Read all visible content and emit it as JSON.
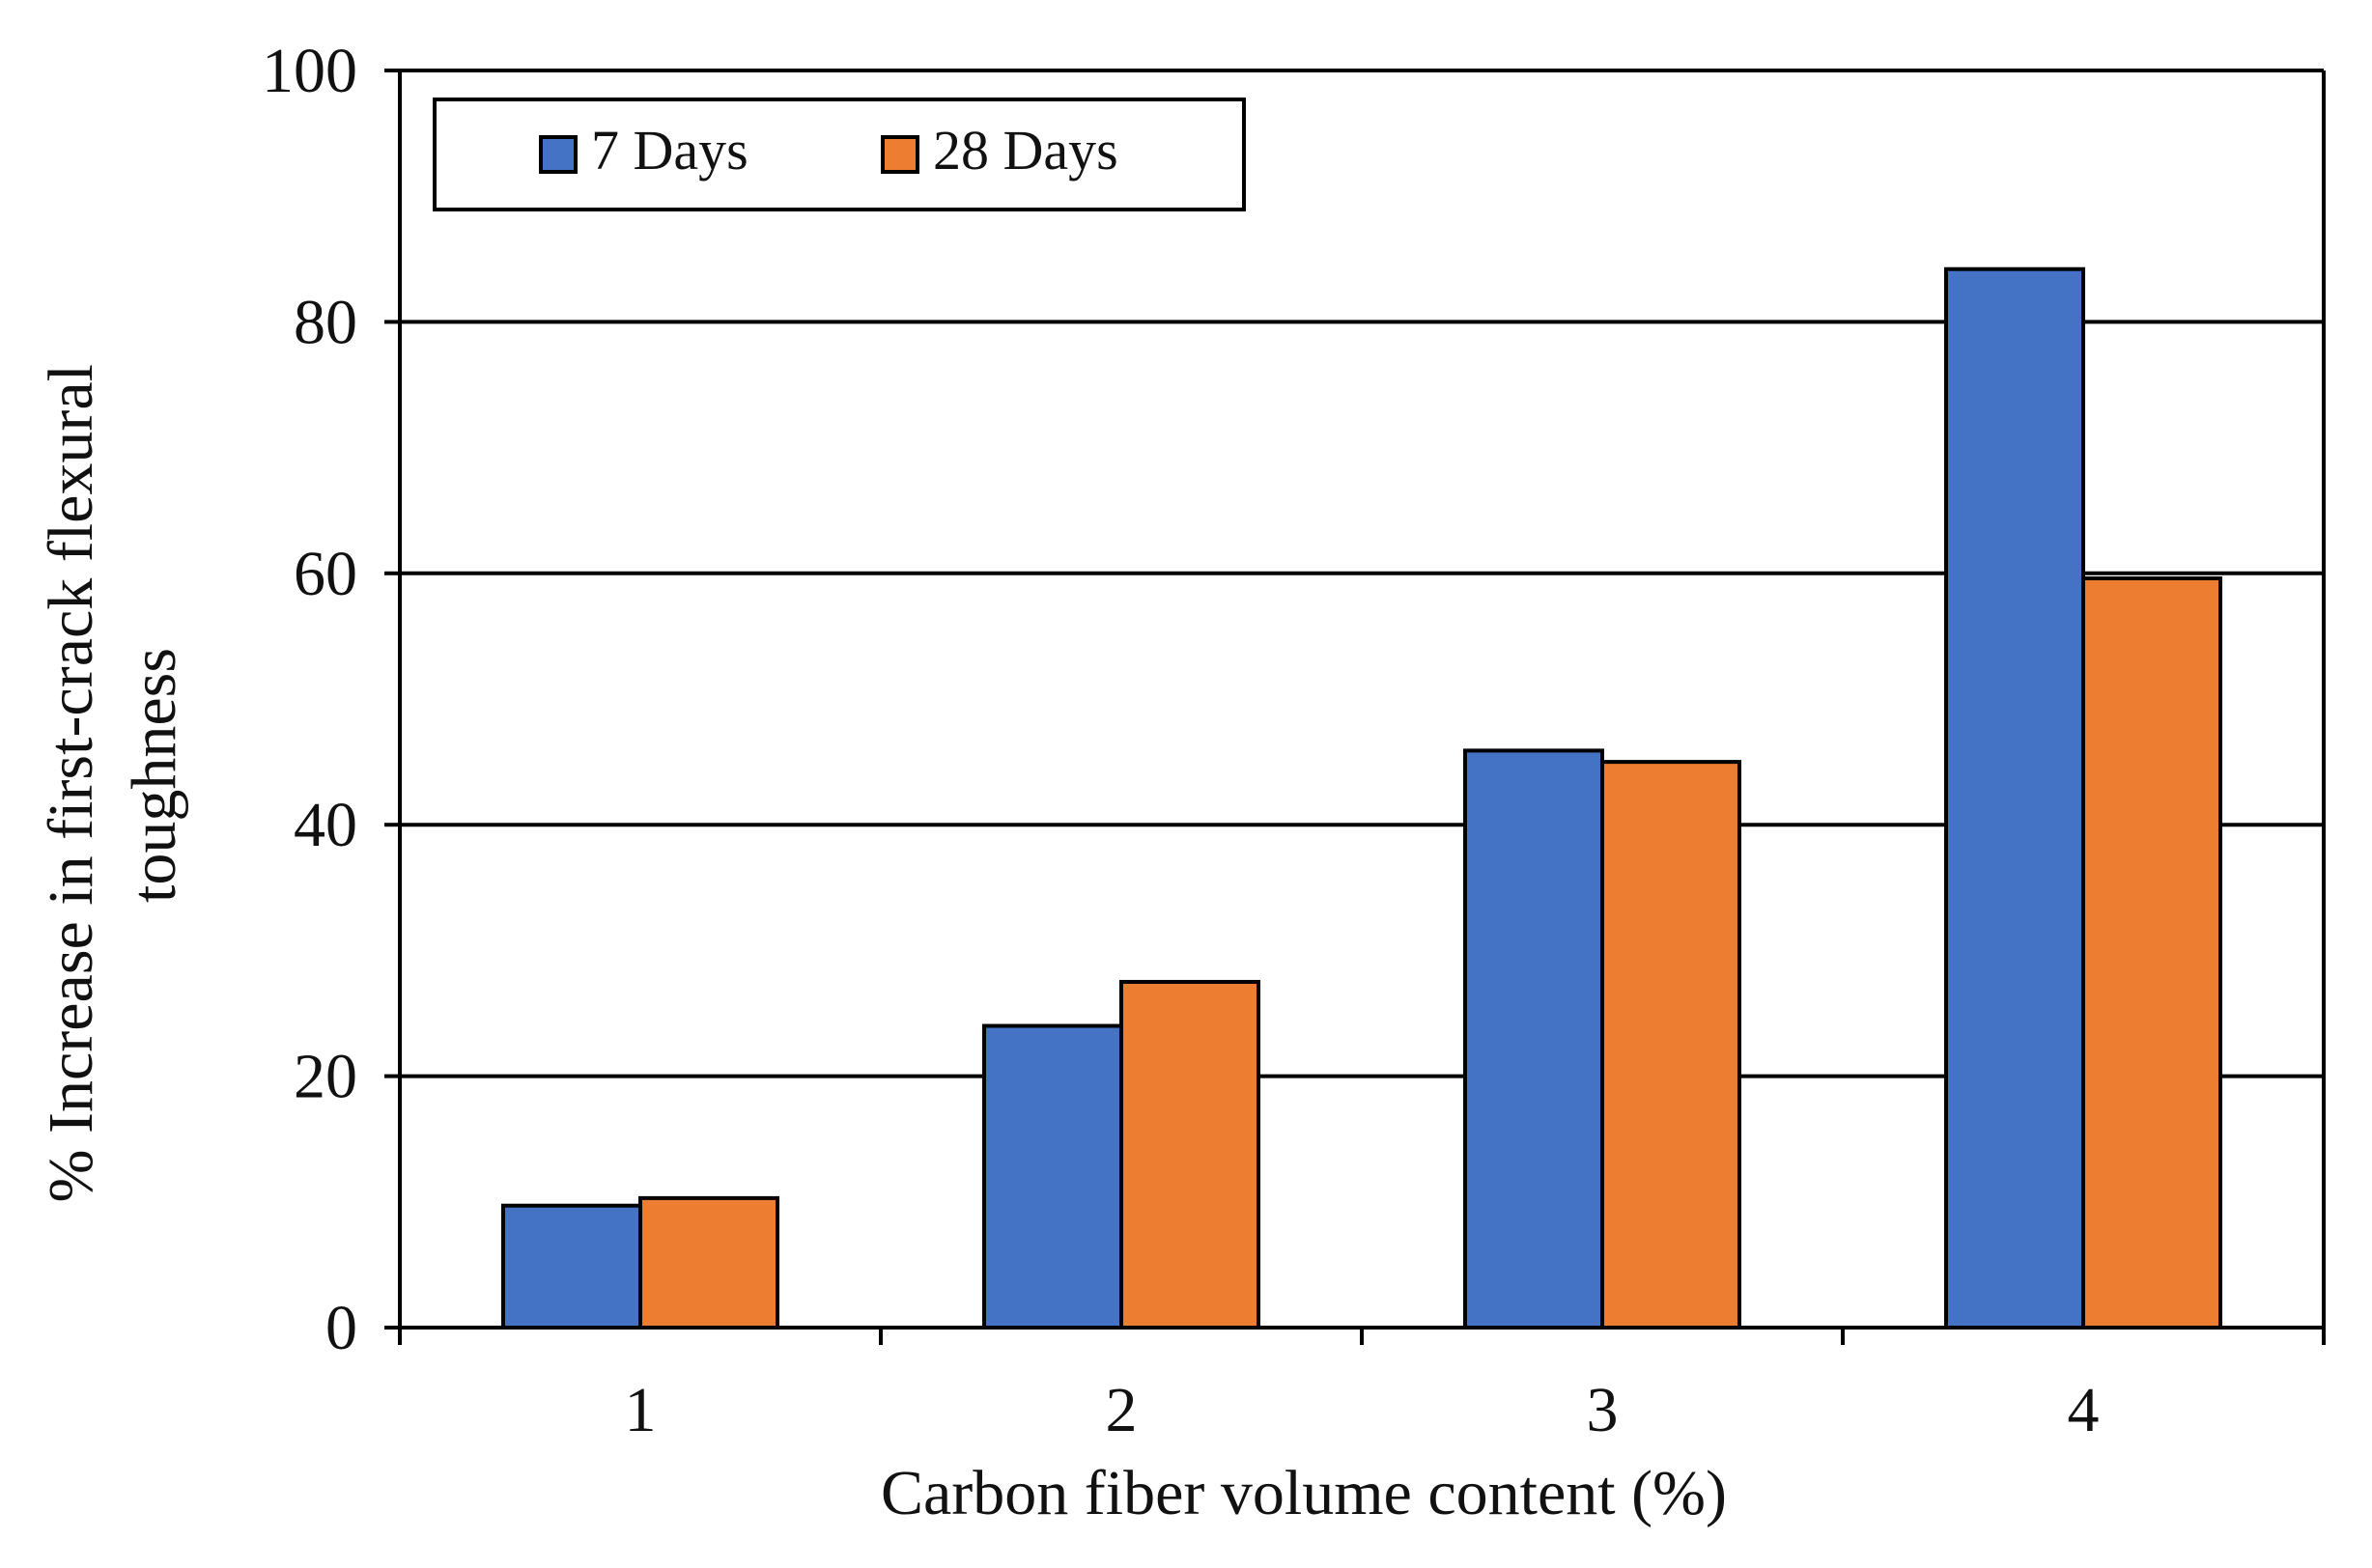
{
  "chart_data": {
    "type": "bar",
    "categories": [
      "1",
      "2",
      "3",
      "4"
    ],
    "series": [
      {
        "name": "7 Days",
        "values": [
          9.7,
          24.0,
          45.9,
          84.2
        ],
        "color": "#4472c4"
      },
      {
        "name": "28 Days",
        "values": [
          10.3,
          27.5,
          45.0,
          59.6
        ],
        "color": "#ed7d31"
      }
    ],
    "xlabel": "Carbon fiber volume content (%)",
    "ylabel_lines": [
      "% Increase in first-crack  flexural",
      "toughness"
    ],
    "ylim": [
      0,
      100
    ],
    "yticks": [
      0,
      20,
      40,
      60,
      80,
      100
    ],
    "grid": true,
    "legend": {
      "position": "top-left"
    }
  }
}
